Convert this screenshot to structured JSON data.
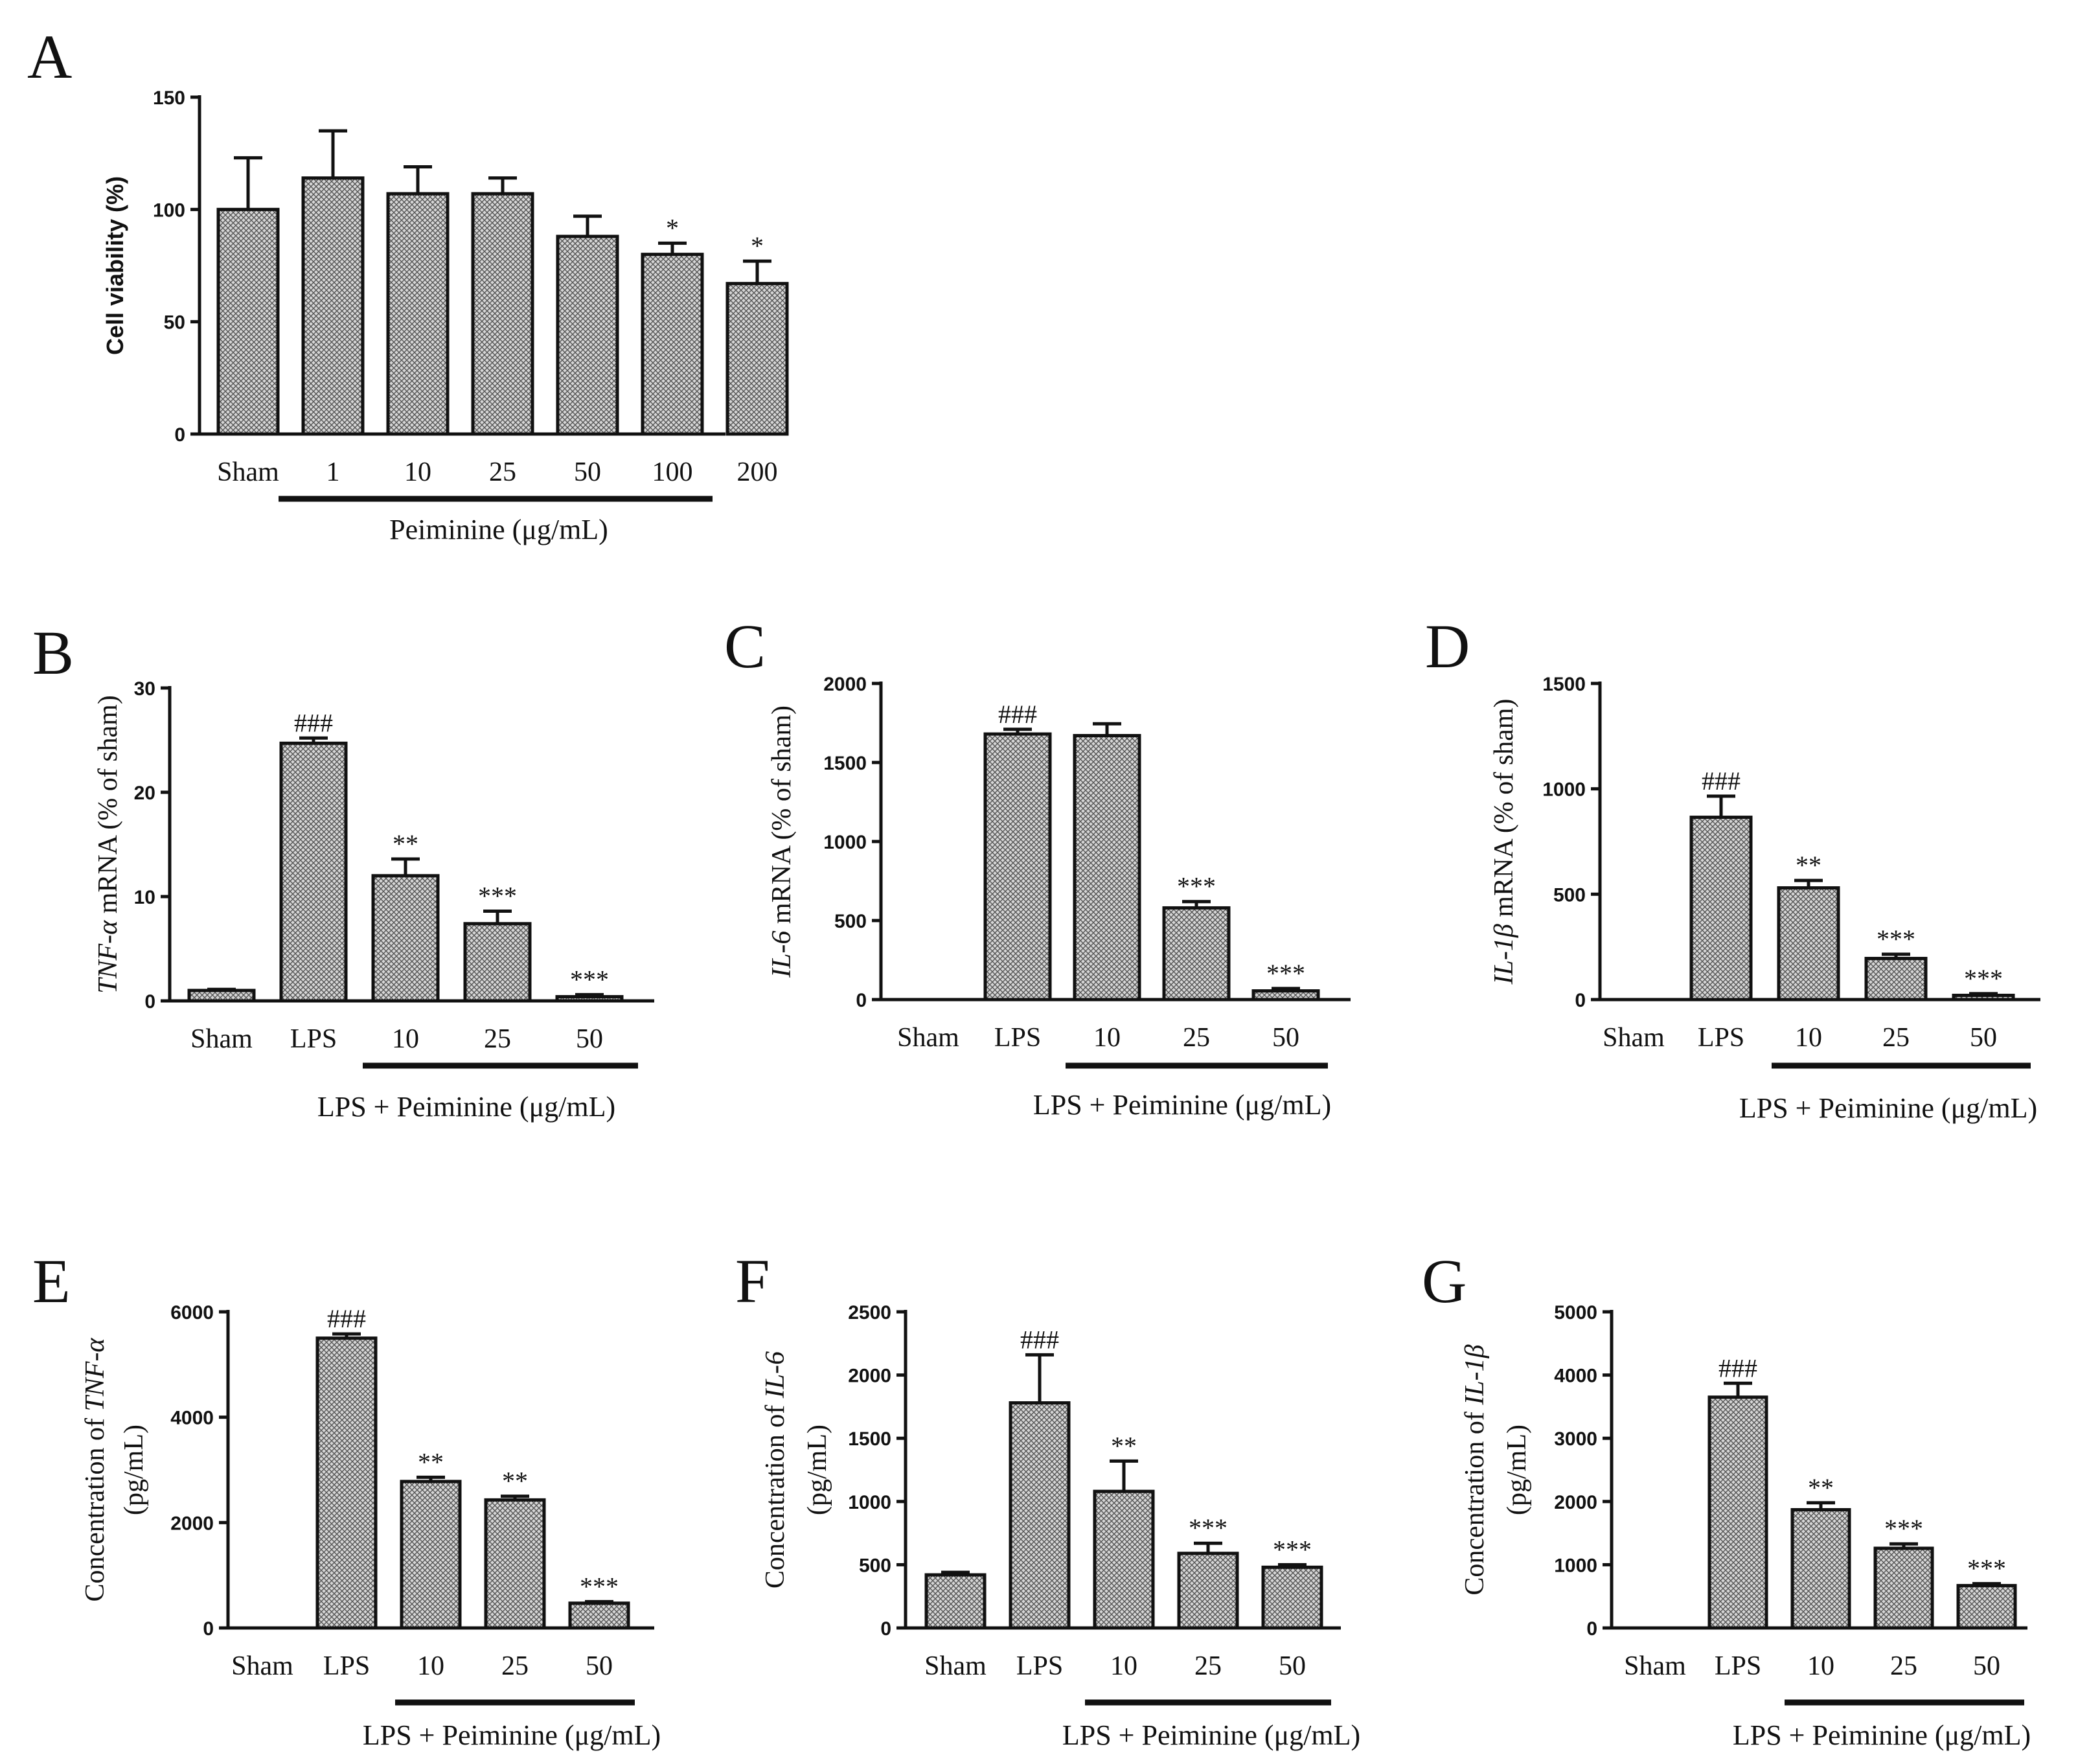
{
  "chart_data": [
    {
      "type": "bar",
      "panel": "A",
      "ylabel": "Cell viability (%)",
      "ylabel_style": "bold",
      "categories": [
        "Sham",
        "1",
        "10",
        "25",
        "50",
        "100",
        "200"
      ],
      "values": [
        100,
        114,
        107,
        107,
        88,
        80,
        67
      ],
      "errors": [
        23,
        21,
        12,
        7,
        9,
        5,
        10
      ],
      "significance": [
        "",
        "",
        "",
        "",
        "",
        "*",
        "*"
      ],
      "ylim": [
        0,
        150
      ],
      "yticks": [
        0,
        50,
        100,
        150
      ],
      "group_label": "Peiminine (μg/mL)",
      "group_start": 1,
      "group_end": 6
    },
    {
      "type": "bar",
      "panel": "B",
      "ylabel_italic": "TNF-α",
      "ylabel_rest": " mRNA (% of sham)",
      "categories": [
        "Sham",
        "LPS",
        "10",
        "25",
        "50"
      ],
      "values": [
        1,
        24.7,
        12,
        7.4,
        0.4
      ],
      "errors": [
        0.1,
        0.5,
        1.6,
        1.2,
        0.2
      ],
      "significance": [
        "",
        "###",
        "**",
        "***",
        "***"
      ],
      "ylim": [
        0,
        30
      ],
      "yticks": [
        0,
        10,
        20,
        30
      ],
      "group_label": "LPS + Peiminine (μg/mL)",
      "group_start": 2,
      "group_end": 4
    },
    {
      "type": "bar",
      "panel": "C",
      "ylabel_italic": "IL-6",
      "ylabel_rest": " mRNA (% of sham)",
      "categories": [
        "Sham",
        "LPS",
        "10",
        "25",
        "50"
      ],
      "values": [
        1,
        1680,
        1670,
        580,
        55
      ],
      "errors": [
        0,
        30,
        75,
        40,
        15
      ],
      "significance": [
        "",
        "###",
        "",
        "***",
        "***"
      ],
      "ylim": [
        0,
        2000
      ],
      "yticks": [
        0,
        500,
        1000,
        1500,
        2000
      ],
      "group_label": "LPS + Peiminine (μg/mL)",
      "group_start": 2,
      "group_end": 4
    },
    {
      "type": "bar",
      "panel": "D",
      "ylabel_italic": "IL-1β",
      "ylabel_rest": " mRNA (% of sham)",
      "categories": [
        "Sham",
        "LPS",
        "10",
        "25",
        "50"
      ],
      "values": [
        1,
        865,
        530,
        195,
        20
      ],
      "errors": [
        0,
        100,
        35,
        20,
        8
      ],
      "significance": [
        "",
        "###",
        "**",
        "***",
        "***"
      ],
      "ylim": [
        0,
        1500
      ],
      "yticks": [
        0,
        500,
        1000,
        1500
      ],
      "group_label": "LPS + Peiminine (μg/mL)",
      "group_start": 2,
      "group_end": 4
    },
    {
      "type": "bar",
      "panel": "E",
      "ylabel_line1_plain": "Concentration of ",
      "ylabel_line1_italic": "TNF-α",
      "ylabel_line2": "(pg/mL)",
      "categories": [
        "Sham",
        "LPS",
        "10",
        "25",
        "50"
      ],
      "values": [
        0,
        5500,
        2780,
        2430,
        470
      ],
      "errors": [
        0,
        80,
        80,
        70,
        30
      ],
      "significance": [
        "",
        "###",
        "**",
        "**",
        "***"
      ],
      "ylim": [
        0,
        6000
      ],
      "yticks": [
        0,
        2000,
        4000,
        6000
      ],
      "group_label": "LPS + Peiminine (μg/mL)",
      "group_start": 2,
      "group_end": 4
    },
    {
      "type": "bar",
      "panel": "F",
      "ylabel_line1_plain": "Concentration of ",
      "ylabel_line1_italic": "IL-6",
      "ylabel_line2": "(pg/mL)",
      "categories": [
        "Sham",
        "LPS",
        "10",
        "25",
        "50"
      ],
      "values": [
        420,
        1780,
        1080,
        590,
        480
      ],
      "errors": [
        20,
        380,
        240,
        80,
        20
      ],
      "significance": [
        "",
        "###",
        "**",
        "***",
        "***"
      ],
      "ylim": [
        0,
        2500
      ],
      "yticks": [
        0,
        500,
        1000,
        1500,
        2000,
        2500
      ],
      "group_label": "LPS + Peiminine (μg/mL)",
      "group_start": 2,
      "group_end": 4
    },
    {
      "type": "bar",
      "panel": "G",
      "ylabel_line1_plain": "Concentration of ",
      "ylabel_line1_italic": "IL-1β",
      "ylabel_line2": "(pg/mL)",
      "categories": [
        "Sham",
        "LPS",
        "10",
        "25",
        "50"
      ],
      "values": [
        0,
        3650,
        1870,
        1260,
        670
      ],
      "errors": [
        0,
        220,
        110,
        70,
        30
      ],
      "significance": [
        "",
        "###",
        "**",
        "***",
        "***"
      ],
      "ylim": [
        0,
        5000
      ],
      "yticks": [
        0,
        1000,
        2000,
        3000,
        4000,
        5000
      ],
      "group_label": "LPS + Peiminine (μg/mL)",
      "group_start": 2,
      "group_end": 4
    }
  ]
}
